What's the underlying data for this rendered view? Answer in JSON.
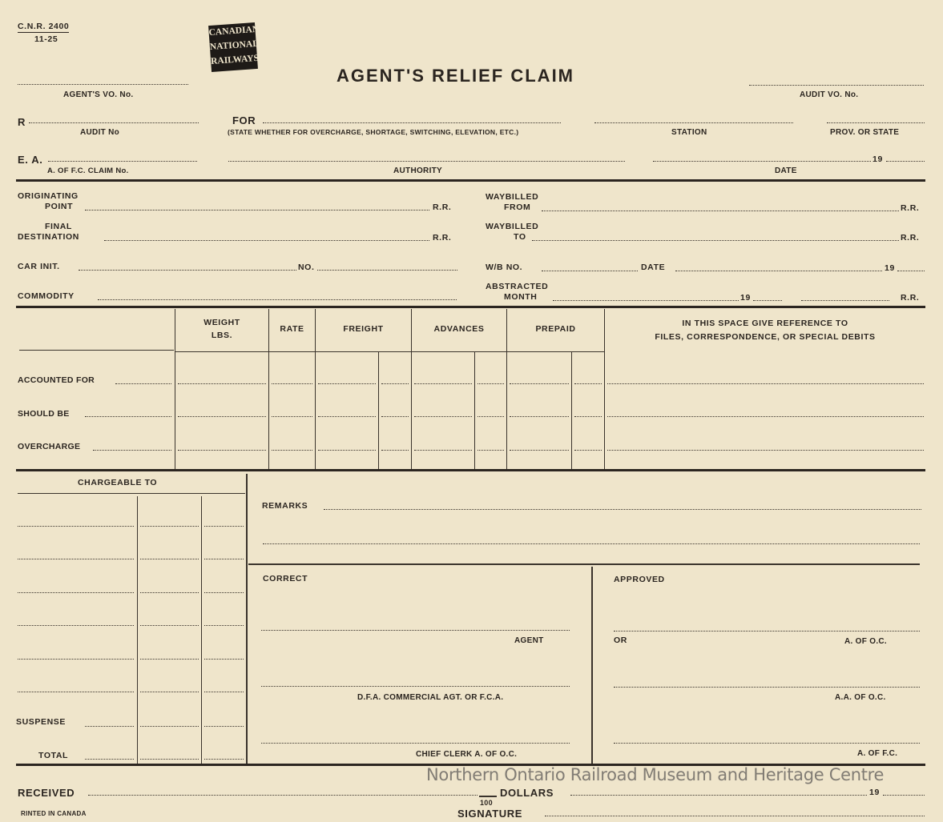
{
  "header": {
    "form_no": "C.N.R. 2400",
    "form_date": "11-25",
    "logo": [
      "CANADIAN",
      "NATIONAL",
      "RAILWAYS"
    ],
    "title": "AGENT'S RELIEF CLAIM"
  },
  "top": {
    "agents_vo": "AGENT'S VO. No.",
    "audit_vo": "AUDIT VO. No.",
    "r": "R",
    "audit_no": "AUDIT No",
    "for": "FOR",
    "for_note": "(STATE WHETHER FOR OVERCHARGE, SHORTAGE, SWITCHING, ELEVATION, ETC.)",
    "station": "STATION",
    "prov": "PROV. OR STATE",
    "ea": "E. A.",
    "claim_no": "A. OF F.C. CLAIM No.",
    "authority": "AUTHORITY",
    "year": "19",
    "date": "DATE"
  },
  "shipment": {
    "originating": "ORIGINATING",
    "point": "POINT",
    "rr": "R.R.",
    "final": "FINAL",
    "destination": "DESTINATION",
    "waybilled": "WAYBILLED",
    "from": "FROM",
    "to": "TO",
    "car_init": "CAR INIT.",
    "no": "NO.",
    "wb_no": "W/B NO.",
    "date": "DATE",
    "year": "19",
    "commodity": "COMMODITY",
    "abstracted": "ABSTRACTED",
    "month": "MONTH"
  },
  "table": {
    "headers": [
      "WEIGHT",
      "LBS.",
      "RATE",
      "FREIGHT",
      "ADVANCES",
      "PREPAID"
    ],
    "reference": [
      "IN THIS SPACE GIVE REFERENCE TO",
      "FILES, CORRESPONDENCE, OR SPECIAL DEBITS"
    ],
    "rows": [
      "ACCOUNTED  FOR",
      "SHOULD BE",
      "OVERCHARGE"
    ]
  },
  "chargeable": {
    "title": "CHARGEABLE TO",
    "suspense": "SUSPENSE",
    "total": "TOTAL"
  },
  "remarks": {
    "label": "REMARKS"
  },
  "correct": {
    "label": "CORRECT",
    "agent": "AGENT",
    "dfa": "D.F.A. COMMERCIAL AGT. OR F.C.A.",
    "chief": "CHIEF CLERK A. OF O.C."
  },
  "approved": {
    "label": "APPROVED",
    "or": "OR",
    "aoc": "A. OF O.C.",
    "aaoc": "A.A. OF O.C.",
    "afc": "A. OF F.C."
  },
  "footer": {
    "received": "RECEIVED",
    "dollars": "DOLLARS",
    "cents": "100",
    "year": "19",
    "printed": "RINTED IN CANADA",
    "signature": "SIGNATURE"
  },
  "watermark": "Northern Ontario Railroad Museum and Heritage Centre"
}
